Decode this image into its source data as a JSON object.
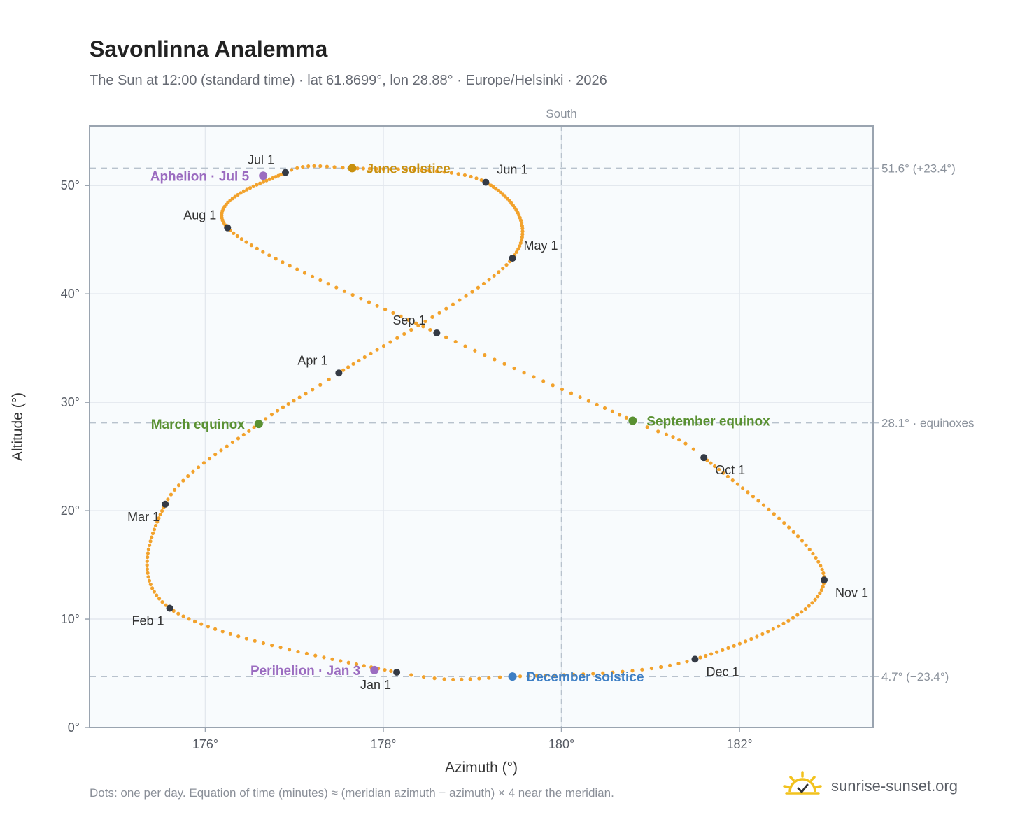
{
  "header": {
    "title": "Savonlinna Analemma",
    "subtitle": "The Sun at 12:00 (standard time) · lat 61.8699°, lon 28.88° · Europe/Helsinki · 2026"
  },
  "footer": {
    "note": "Dots: one per day. Equation of time (minutes) ≈ (meridian azimuth − azimuth) × 4 near the meridian.",
    "brand": "sunrise-sunset.org"
  },
  "colors": {
    "path": "#f2a22c",
    "month_marker": "#343a45",
    "solstice_june": "#c8900f",
    "solstice_december": "#3d7ec4",
    "equinox": "#5a9132",
    "apsis": "#9b6cc0",
    "reference_line": "#b8c2cd",
    "brand_sun": "#f2c21e"
  },
  "chart_data": {
    "type": "scatter",
    "xlabel": "Azimuth (°)",
    "ylabel": "Altitude (°)",
    "xlim": [
      174.7,
      183.5
    ],
    "ylim": [
      0,
      55.5
    ],
    "xticks": [
      176,
      178,
      180,
      182
    ],
    "xtick_labels": [
      "176°",
      "178°",
      "180°",
      "182°"
    ],
    "yticks": [
      0,
      10,
      20,
      30,
      40,
      50
    ],
    "ytick_labels": [
      "0°",
      "10°",
      "20°",
      "30°",
      "40°",
      "50°"
    ],
    "grid": true,
    "meridian": {
      "azimuth": 180,
      "label": "South"
    },
    "reference_lines": [
      {
        "altitude": 51.6,
        "label": "51.6° (+23.4°)"
      },
      {
        "altitude": 28.1,
        "label": "28.1° · equinoxes"
      },
      {
        "altitude": 4.7,
        "label": "4.7° (−23.4°)"
      }
    ],
    "daily_path_anchors": [
      {
        "day": 1,
        "azimuth": 178.15,
        "altitude": 5.1
      },
      {
        "day": 32,
        "azimuth": 175.6,
        "altitude": 11.0
      },
      {
        "day": 60,
        "azimuth": 175.55,
        "altitude": 20.6
      },
      {
        "day": 79,
        "azimuth": 176.6,
        "altitude": 28.0
      },
      {
        "day": 91,
        "azimuth": 177.5,
        "altitude": 32.7
      },
      {
        "day": 121,
        "azimuth": 179.45,
        "altitude": 43.3
      },
      {
        "day": 152,
        "azimuth": 179.15,
        "altitude": 50.3
      },
      {
        "day": 172,
        "azimuth": 177.65,
        "altitude": 51.6
      },
      {
        "day": 182,
        "azimuth": 176.9,
        "altitude": 51.2
      },
      {
        "day": 213,
        "azimuth": 176.25,
        "altitude": 46.1
      },
      {
        "day": 244,
        "azimuth": 178.6,
        "altitude": 36.4
      },
      {
        "day": 266,
        "azimuth": 180.8,
        "altitude": 28.3
      },
      {
        "day": 274,
        "azimuth": 181.6,
        "altitude": 24.9
      },
      {
        "day": 305,
        "azimuth": 182.95,
        "altitude": 13.6
      },
      {
        "day": 335,
        "azimuth": 181.5,
        "altitude": 6.3
      },
      {
        "day": 355,
        "azimuth": 179.45,
        "altitude": 4.7
      },
      {
        "day": 366,
        "azimuth": 178.15,
        "altitude": 5.1
      }
    ],
    "month_markers": [
      {
        "label": "Jan 1",
        "azimuth": 178.15,
        "altitude": 5.1,
        "label_pos": "below-left"
      },
      {
        "label": "Feb 1",
        "azimuth": 175.6,
        "altitude": 11.0,
        "label_pos": "below-left"
      },
      {
        "label": "Mar 1",
        "azimuth": 175.55,
        "altitude": 20.6,
        "label_pos": "below-left"
      },
      {
        "label": "Apr 1",
        "azimuth": 177.5,
        "altitude": 32.7,
        "label_pos": "above-left"
      },
      {
        "label": "May 1",
        "azimuth": 179.45,
        "altitude": 43.3,
        "label_pos": "above-right"
      },
      {
        "label": "Jun 1",
        "azimuth": 179.15,
        "altitude": 50.3,
        "label_pos": "above-right"
      },
      {
        "label": "Jul 1",
        "azimuth": 176.9,
        "altitude": 51.2,
        "label_pos": "above-left"
      },
      {
        "label": "Aug 1",
        "azimuth": 176.25,
        "altitude": 46.1,
        "label_pos": "above-left"
      },
      {
        "label": "Sep 1",
        "azimuth": 178.6,
        "altitude": 36.4,
        "label_pos": "above-left"
      },
      {
        "label": "Oct 1",
        "azimuth": 181.6,
        "altitude": 24.9,
        "label_pos": "below-right"
      },
      {
        "label": "Nov 1",
        "azimuth": 182.95,
        "altitude": 13.6,
        "label_pos": "below-right"
      },
      {
        "label": "Dec 1",
        "azimuth": 181.5,
        "altitude": 6.3,
        "label_pos": "below-right"
      }
    ],
    "events": [
      {
        "label": "June solstice",
        "azimuth": 177.65,
        "altitude": 51.6,
        "kind": "solstice_june",
        "label_side": "right"
      },
      {
        "label": "December solstice",
        "azimuth": 179.45,
        "altitude": 4.7,
        "kind": "solstice_december",
        "label_side": "right"
      },
      {
        "label": "March equinox",
        "azimuth": 176.6,
        "altitude": 28.0,
        "kind": "equinox",
        "label_side": "left"
      },
      {
        "label": "September equinox",
        "azimuth": 180.8,
        "altitude": 28.3,
        "kind": "equinox",
        "label_side": "right"
      },
      {
        "label": "Aphelion · Jul 5",
        "azimuth": 176.65,
        "altitude": 50.9,
        "kind": "apsis",
        "label_side": "left"
      },
      {
        "label": "Perihelion · Jan 3",
        "azimuth": 177.9,
        "altitude": 5.3,
        "kind": "apsis",
        "label_side": "left"
      }
    ]
  }
}
